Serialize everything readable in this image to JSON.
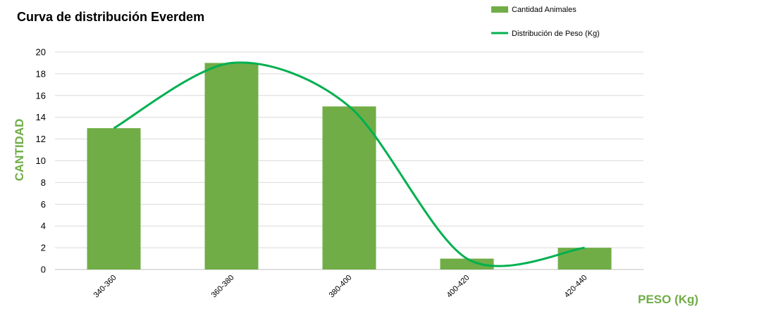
{
  "colors": {
    "bar": "#70AD47",
    "line": "#00B050",
    "grid": "#D9D9D9",
    "axis_title": "#70AD47"
  },
  "chart_data": {
    "type": "bar",
    "title": "Curva de distribución Everdem",
    "xlabel": "PESO (Kg)",
    "ylabel": "CANTIDAD",
    "categories": [
      "340-360",
      "360-380",
      "380-400",
      "400-420",
      "420-440"
    ],
    "series": [
      {
        "name": "Cantidad Animales",
        "type": "bar",
        "values": [
          13,
          19,
          15,
          1,
          2
        ]
      },
      {
        "name": "Distribución de Peso (Kg)",
        "type": "line",
        "smooth": true,
        "values": [
          13,
          19,
          15,
          1,
          2
        ]
      }
    ],
    "ylim": [
      0,
      20
    ],
    "yticks": [
      0,
      2,
      4,
      6,
      8,
      10,
      12,
      14,
      16,
      18,
      20
    ],
    "grid": true,
    "legend_position": "top-right"
  }
}
